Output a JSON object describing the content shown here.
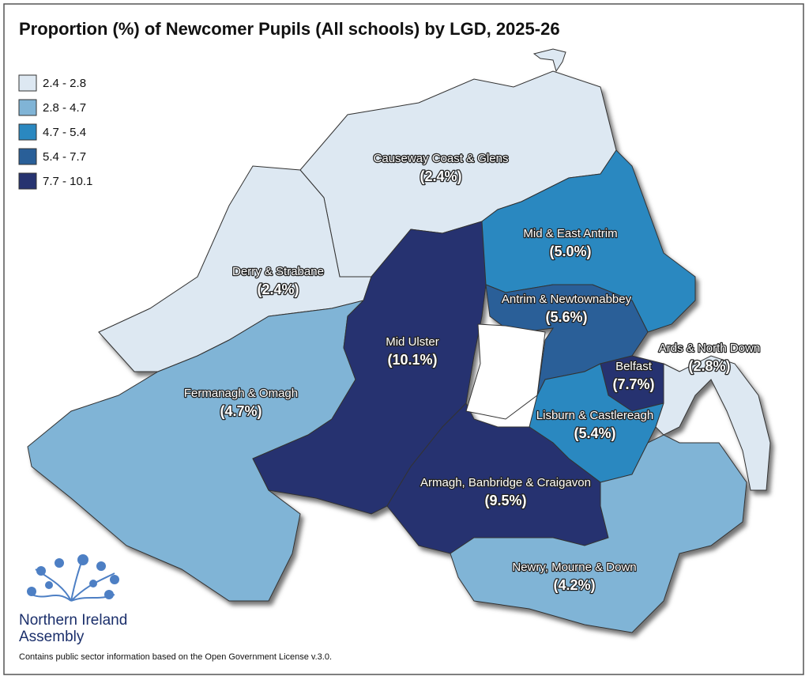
{
  "title": "Proportion (%) of Newcomer Pupils (All schools) by LGD, 2025-26",
  "legend": {
    "items": [
      {
        "label": "2.4 - 2.8",
        "color": "#dde8f2"
      },
      {
        "label": "2.8 - 4.7",
        "color": "#80b4d6"
      },
      {
        "label": "4.7 - 5.4",
        "color": "#2a88c0"
      },
      {
        "label": "5.4 - 7.7",
        "color": "#295f98"
      },
      {
        "label": "7.7 - 10.1",
        "color": "#263370"
      }
    ]
  },
  "regions": [
    {
      "name": "Causeway Coast & Glens",
      "value": 2.4,
      "value_label": "(2.4%)",
      "color": "#dde8f2"
    },
    {
      "name": "Derry & Strabane",
      "value": 2.4,
      "value_label": "(2.4%)",
      "color": "#dde8f2"
    },
    {
      "name": "Fermanagh & Omagh",
      "value": 4.7,
      "value_label": "(4.7%)",
      "color": "#80b4d6"
    },
    {
      "name": "Mid Ulster",
      "value": 10.1,
      "value_label": "(10.1%)",
      "color": "#263370"
    },
    {
      "name": "Mid & East Antrim",
      "value": 5.0,
      "value_label": "(5.0%)",
      "color": "#2a88c0"
    },
    {
      "name": "Antrim & Newtownabbey",
      "value": 5.6,
      "value_label": "(5.6%)",
      "color": "#295f98"
    },
    {
      "name": "Belfast",
      "value": 7.7,
      "value_label": "(7.7%)",
      "color": "#263370"
    },
    {
      "name": "Lisburn & Castlereagh",
      "value": 5.4,
      "value_label": "(5.4%)",
      "color": "#2a88c0"
    },
    {
      "name": "Ards & North Down",
      "value": 2.8,
      "value_label": "(2.8%)",
      "color": "#dde8f2"
    },
    {
      "name": "Armagh, Banbridge & Craigavon",
      "value": 9.5,
      "value_label": "(9.5%)",
      "color": "#263370"
    },
    {
      "name": "Newry, Mourne & Down",
      "value": 4.2,
      "value_label": "(4.2%)",
      "color": "#80b4d6"
    }
  ],
  "logo": {
    "lines": [
      "Northern Ireland",
      "Assembly"
    ]
  },
  "footer": "Contains public sector information based on the Open Government License v.3.0."
}
